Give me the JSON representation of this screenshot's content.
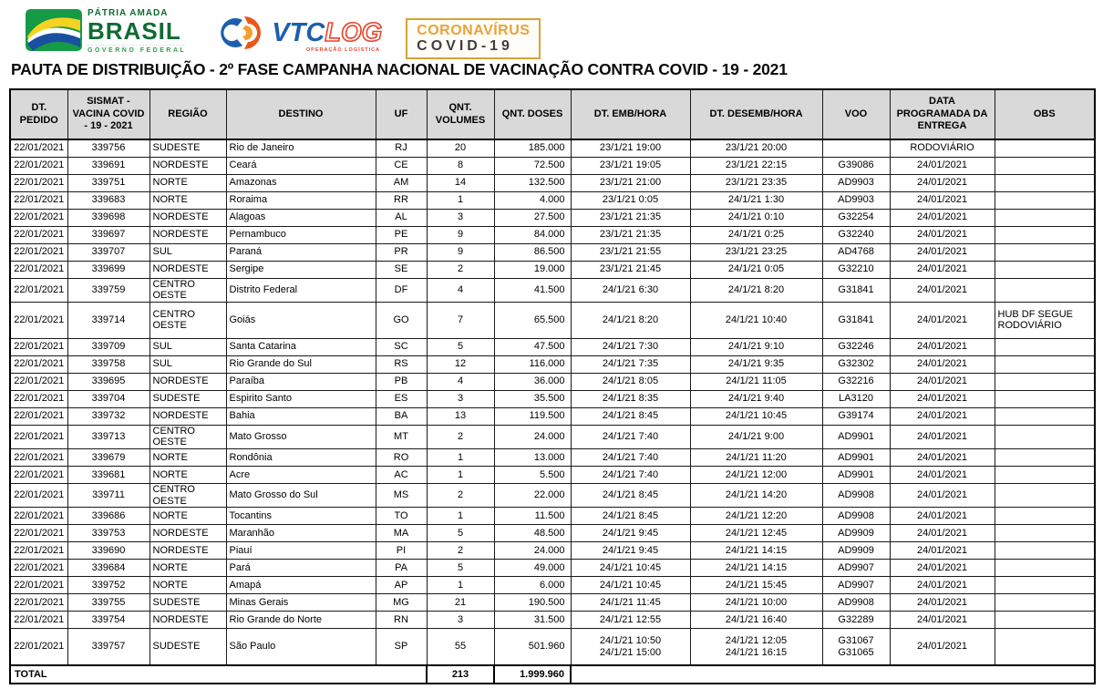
{
  "header": {
    "brasil_logo": {
      "line1": "PÁTRIA AMADA",
      "line2": "BRASIL",
      "line3": "GOVERNO FEDERAL"
    },
    "vtclog_logo": {
      "vtc": "VTC",
      "log": "LOG",
      "subtitle": "OPERAÇÃO LOGÍSTICA"
    },
    "covid_badge": {
      "line1": "CORONAVÍRUS",
      "line2": "COVID-19"
    },
    "title": "PAUTA DE DISTRIBUIÇÃO - 2º FASE CAMPANHA NACIONAL DE VACINAÇÃO CONTRA COVID - 19 - 2021"
  },
  "table": {
    "columns": [
      {
        "key": "dt_pedido",
        "label": "DT. PEDIDO",
        "align": "c"
      },
      {
        "key": "sismat",
        "label": "SISMAT - VACINA COVID - 19 - 2021",
        "align": "c"
      },
      {
        "key": "regiao",
        "label": "REGIÃO",
        "align": "l"
      },
      {
        "key": "destino",
        "label": "DESTINO",
        "align": "l"
      },
      {
        "key": "uf",
        "label": "UF",
        "align": "c"
      },
      {
        "key": "qnt_volumes",
        "label": "QNT. VOLUMES",
        "align": "c"
      },
      {
        "key": "qnt_doses",
        "label": "QNT. DOSES",
        "align": "r"
      },
      {
        "key": "dt_emb",
        "label": "DT. EMB/HORA",
        "align": "c"
      },
      {
        "key": "dt_desemb",
        "label": "DT. DESEMB/HORA",
        "align": "c"
      },
      {
        "key": "voo",
        "label": "VOO",
        "align": "c"
      },
      {
        "key": "data_entrega",
        "label": "DATA PROGRAMADA DA ENTREGA",
        "align": "c"
      },
      {
        "key": "obs",
        "label": "OBS",
        "align": "l"
      }
    ],
    "rows": [
      [
        "22/01/2021",
        "339756",
        "SUDESTE",
        "Rio de Janeiro",
        "RJ",
        "20",
        "185.000",
        "23/1/21 19:00",
        "23/1/21 20:00",
        "",
        "RODOVIÁRIO",
        ""
      ],
      [
        "22/01/2021",
        "339691",
        "NORDESTE",
        "Ceará",
        "CE",
        "8",
        "72.500",
        "23/1/21 19:05",
        "23/1/21 22:15",
        "G39086",
        "24/01/2021",
        ""
      ],
      [
        "22/01/2021",
        "339751",
        "NORTE",
        "Amazonas",
        "AM",
        "14",
        "132.500",
        "23/1/21 21:00",
        "23/1/21 23:35",
        "AD9903",
        "24/01/2021",
        ""
      ],
      [
        "22/01/2021",
        "339683",
        "NORTE",
        "Roraima",
        "RR",
        "1",
        "4.000",
        "23/1/21 0:05",
        "24/1/21 1:30",
        "AD9903",
        "24/01/2021",
        ""
      ],
      [
        "22/01/2021",
        "339698",
        "NORDESTE",
        "Alagoas",
        "AL",
        "3",
        "27.500",
        "23/1/21 21:35",
        "24/1/21 0:10",
        "G32254",
        "24/01/2021",
        ""
      ],
      [
        "22/01/2021",
        "339697",
        "NORDESTE",
        "Pernambuco",
        "PE",
        "9",
        "84.000",
        "23/1/21 21:35",
        "24/1/21 0:25",
        "G32240",
        "24/01/2021",
        ""
      ],
      [
        "22/01/2021",
        "339707",
        "SUL",
        "Paraná",
        "PR",
        "9",
        "86.500",
        "23/1/21 21:55",
        "23/1/21 23:25",
        "AD4768",
        "24/01/2021",
        ""
      ],
      [
        "22/01/2021",
        "339699",
        "NORDESTE",
        "Sergipe",
        "SE",
        "2",
        "19.000",
        "23/1/21 21:45",
        "24/1/21 0:05",
        "G32210",
        "24/01/2021",
        ""
      ],
      [
        "22/01/2021",
        "339759",
        "CENTRO OESTE",
        "Distrito Federal",
        "DF",
        "4",
        "41.500",
        "24/1/21 6:30",
        "24/1/21 8:20",
        "G31841",
        "24/01/2021",
        ""
      ],
      [
        "22/01/2021",
        "339714",
        "CENTRO OESTE",
        "Goiás",
        "GO",
        "7",
        "65.500",
        "24/1/21 8:20",
        "24/1/21 10:40",
        "G31841",
        "24/01/2021",
        "HUB DF  SEGUE\nRODOVIÁRIO"
      ],
      [
        "22/01/2021",
        "339709",
        "SUL",
        "Santa Catarina",
        "SC",
        "5",
        "47.500",
        "24/1/21 7:30",
        "24/1/21 9:10",
        "G32246",
        "24/01/2021",
        ""
      ],
      [
        "22/01/2021",
        "339758",
        "SUL",
        "Rio Grande do Sul",
        "RS",
        "12",
        "116.000",
        "24/1/21 7:35",
        "24/1/21 9:35",
        "G32302",
        "24/01/2021",
        ""
      ],
      [
        "22/01/2021",
        "339695",
        "NORDESTE",
        "Paraíba",
        "PB",
        "4",
        "36.000",
        "24/1/21 8:05",
        "24/1/21 11:05",
        "G32216",
        "24/01/2021",
        ""
      ],
      [
        "22/01/2021",
        "339704",
        "SUDESTE",
        "Espirito Santo",
        "ES",
        "3",
        "35.500",
        "24/1/21 8:35",
        "24/1/21 9:40",
        "LA3120",
        "24/01/2021",
        ""
      ],
      [
        "22/01/2021",
        "339732",
        "NORDESTE",
        "Bahia",
        "BA",
        "13",
        "119.500",
        "24/1/21 8:45",
        "24/1/21 10:45",
        "G39174",
        "24/01/2021",
        ""
      ],
      [
        "22/01/2021",
        "339713",
        "CENTRO OESTE",
        "Mato Grosso",
        "MT",
        "2",
        "24.000",
        "24/1/21 7:40",
        "24/1/21 9:00",
        "AD9901",
        "24/01/2021",
        ""
      ],
      [
        "22/01/2021",
        "339679",
        "NORTE",
        "Rondônia",
        "RO",
        "1",
        "13.000",
        "24/1/21 7:40",
        "24/1/21 11:20",
        "AD9901",
        "24/01/2021",
        ""
      ],
      [
        "22/01/2021",
        "339681",
        "NORTE",
        "Acre",
        "AC",
        "1",
        "5.500",
        "24/1/21 7:40",
        "24/1/21 12:00",
        "AD9901",
        "24/01/2021",
        ""
      ],
      [
        "22/01/2021",
        "339711",
        "CENTRO OESTE",
        "Mato Grosso do Sul",
        "MS",
        "2",
        "22.000",
        "24/1/21 8:45",
        "24/1/21 14:20",
        "AD9908",
        "24/01/2021",
        ""
      ],
      [
        "22/01/2021",
        "339686",
        "NORTE",
        "Tocantins",
        "TO",
        "1",
        "11.500",
        "24/1/21 8:45",
        "24/1/21 12:20",
        "AD9908",
        "24/01/2021",
        ""
      ],
      [
        "22/01/2021",
        "339753",
        "NORDESTE",
        "Maranhão",
        "MA",
        "5",
        "48.500",
        "24/1/21 9:45",
        "24/1/21 12:45",
        "AD9909",
        "24/01/2021",
        ""
      ],
      [
        "22/01/2021",
        "339690",
        "NORDESTE",
        "Piauí",
        "PI",
        "2",
        "24.000",
        "24/1/21 9:45",
        "24/1/21 14:15",
        "AD9909",
        "24/01/2021",
        ""
      ],
      [
        "22/01/2021",
        "339684",
        "NORTE",
        "Pará",
        "PA",
        "5",
        "49.000",
        "24/1/21 10:45",
        "24/1/21 14:15",
        "AD9907",
        "24/01/2021",
        ""
      ],
      [
        "22/01/2021",
        "339752",
        "NORTE",
        "Amapá",
        "AP",
        "1",
        "6.000",
        "24/1/21 10:45",
        "24/1/21 15:45",
        "AD9907",
        "24/01/2021",
        ""
      ],
      [
        "22/01/2021",
        "339755",
        "SUDESTE",
        "Minas Gerais",
        "MG",
        "21",
        "190.500",
        "24/1/21 11:45",
        "24/1/21 10:00",
        "AD9908",
        "24/01/2021",
        ""
      ],
      [
        "22/01/2021",
        "339754",
        "NORDESTE",
        "Rio Grande do Norte",
        "RN",
        "3",
        "31.500",
        "24/1/21 12:55",
        "24/1/21 16:40",
        "G32289",
        "24/01/2021",
        ""
      ],
      [
        "22/01/2021",
        "339757",
        "SUDESTE",
        "São Paulo",
        "SP",
        "55",
        "501.960",
        "24/1/21 10:50\n24/1/21 15:00",
        "24/1/21 12:05\n24/1/21 16:15",
        "G31067\nG31065",
        "24/01/2021",
        ""
      ]
    ],
    "tall_rows": [
      9,
      26
    ],
    "total": {
      "label": "TOTAL",
      "volumes": "213",
      "doses": "1.999.960"
    }
  }
}
